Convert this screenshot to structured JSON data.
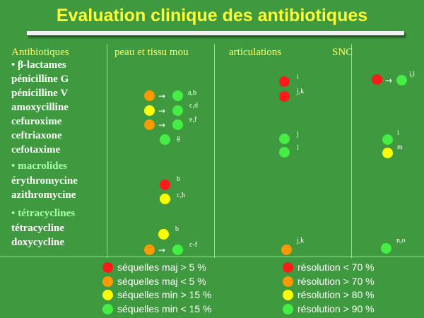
{
  "title": "Evaluation clinique des antibiotiques",
  "headers": {
    "antibiotiques": "Antibiotiques",
    "peau": "peau et tissu mou",
    "articulations": "articulations",
    "snc": "SNC"
  },
  "classes": {
    "beta": {
      "bullet": "•",
      "symbol": "β",
      "label": "-lactames"
    },
    "macrolides": {
      "bullet": "•",
      "label": "macrolides"
    },
    "tetracyclines": {
      "bullet": "•",
      "label": "tétracyclines"
    }
  },
  "drugs": {
    "penicilline_g": "pénicilline G",
    "penicilline_v": "pénicilline V",
    "amoxycilline": "amoxycilline",
    "cefuroxime": "cefuroxime",
    "ceftriaxone": "ceftriaxone",
    "cefotaxime": "cefotaxime",
    "erythromycine": "érythromycine",
    "azithromycine": "azithromycine",
    "tetracycline": "tétracycline",
    "doxycycline": "doxycycline"
  },
  "notes": {
    "peau_ab": "a,b",
    "peau_cd": "c,d",
    "peau_ef": "e,f",
    "peau_g": "g",
    "peau_b1": "b",
    "peau_ch": "c,h",
    "peau_b2": "b",
    "peau_cf": "c-f",
    "art_i": "i",
    "art_jk1": "j,k",
    "art_j": "j",
    "art_l": "l",
    "art_jk2": "j,k",
    "snc_il": "i,l",
    "snc_i": "i",
    "snc_m": "m",
    "snc_no": "n,o"
  },
  "legend": {
    "sequelles": [
      {
        "color": "red",
        "label": "séquelles maj > 5 %"
      },
      {
        "color": "orange",
        "label": "séquelles maj < 5 %"
      },
      {
        "color": "yellow",
        "label": "séquelles min > 15 %"
      },
      {
        "color": "green",
        "label": "séquelles min < 15 %"
      }
    ],
    "resolution": [
      {
        "color": "red",
        "label": "résolution < 70 %"
      },
      {
        "color": "orange",
        "label": "résolution > 70 %"
      },
      {
        "color": "yellow",
        "label": "résolution > 80 %"
      },
      {
        "color": "green",
        "label": "résolution > 90 %"
      }
    ]
  },
  "colors": {
    "background": "#3f9a3f",
    "title": "#ffff33",
    "red": "#ff1a1a",
    "orange": "#ff9900",
    "yellow": "#ffff00",
    "green": "#44ee44"
  }
}
